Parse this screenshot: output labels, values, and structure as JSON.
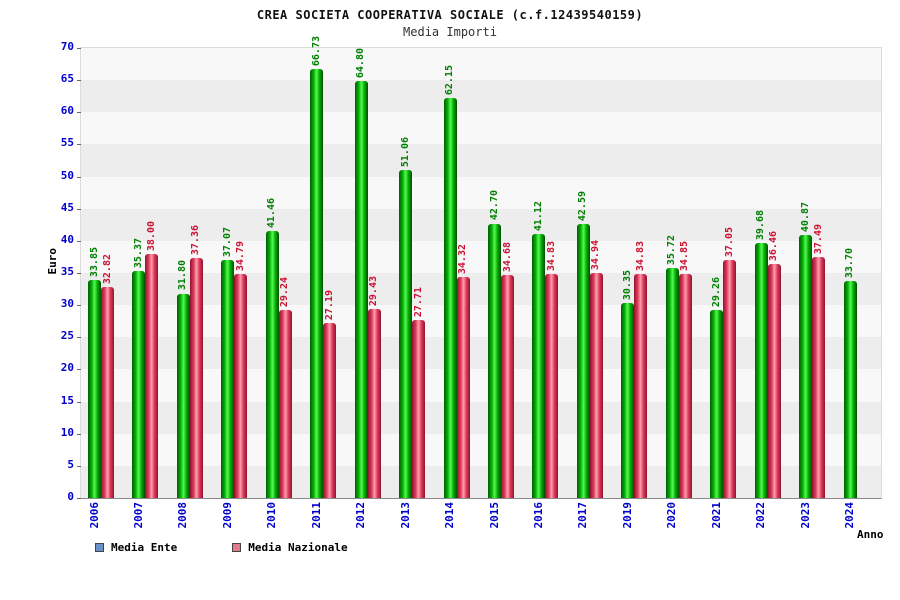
{
  "title": "CREA SOCIETA COOPERATIVA SOCIALE (c.f.12439540159)",
  "subtitle": "Media Importi",
  "axis": {
    "y_label": "Euro",
    "x_label": "Anno"
  },
  "legend": [
    {
      "label": "Media Ente",
      "color": "#6b8fc9"
    },
    {
      "label": "Media Nazionale",
      "color": "#e27a90"
    }
  ],
  "colors": {
    "bar_ente": "#06ad06",
    "bar_nazionale": "#dd3a59",
    "label_ente": "#018001",
    "label_nazionale": "#cc1133",
    "axis_text": "#0000cc",
    "band_dark": "#ededed",
    "band_light": "#f8f8f8"
  },
  "chart_data": {
    "type": "bar",
    "title": "CREA SOCIETA COOPERATIVA SOCIALE (c.f.12439540159) - Media Importi",
    "xlabel": "Anno",
    "ylabel": "Euro",
    "ylim": [
      0,
      70
    ],
    "ytick_step": 5,
    "grid": "horizontal-bands",
    "legend_position": "bottom-left",
    "categories": [
      "2006",
      "2007",
      "2008",
      "2009",
      "2010",
      "2011",
      "2012",
      "2013",
      "2014",
      "2015",
      "2016",
      "2017",
      "2019",
      "2020",
      "2021",
      "2022",
      "2023",
      "2024"
    ],
    "series": [
      {
        "name": "Media Ente",
        "values": [
          33.85,
          35.37,
          31.8,
          37.07,
          41.46,
          66.73,
          64.8,
          51.06,
          62.15,
          42.7,
          41.12,
          42.59,
          30.35,
          35.72,
          29.26,
          39.68,
          40.87,
          33.7
        ]
      },
      {
        "name": "Media Nazionale",
        "values": [
          32.82,
          38.0,
          37.36,
          34.79,
          29.24,
          27.19,
          29.43,
          27.71,
          34.32,
          34.68,
          34.83,
          34.94,
          34.83,
          34.85,
          37.05,
          36.46,
          37.49,
          null
        ]
      }
    ]
  }
}
